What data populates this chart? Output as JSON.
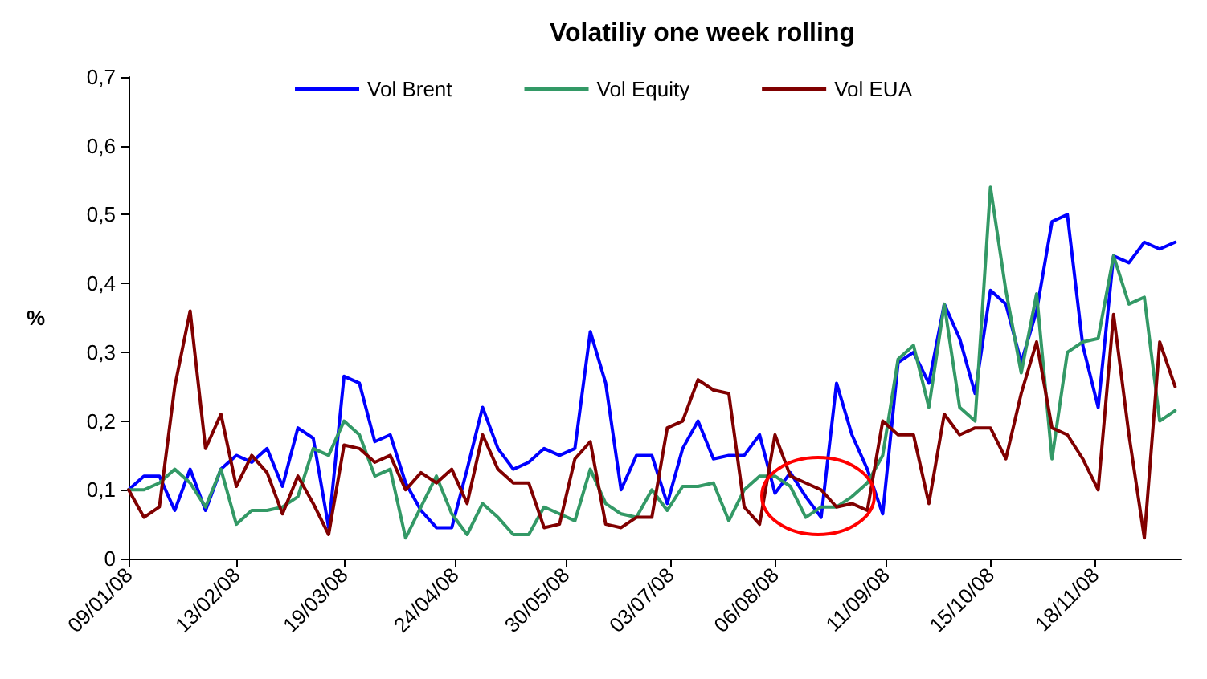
{
  "chart_data": {
    "type": "line",
    "title": "Volatiliy one week rolling",
    "ylabel": "%",
    "x": [
      "2008-01-09",
      "2008-01-14",
      "2008-01-19",
      "2008-01-24",
      "2008-01-29",
      "2008-02-03",
      "2008-02-08",
      "2008-02-13",
      "2008-02-18",
      "2008-02-23",
      "2008-02-28",
      "2008-03-04",
      "2008-03-09",
      "2008-03-14",
      "2008-03-19",
      "2008-03-24",
      "2008-03-29",
      "2008-04-03",
      "2008-04-08",
      "2008-04-13",
      "2008-04-18",
      "2008-04-23",
      "2008-04-28",
      "2008-05-03",
      "2008-05-08",
      "2008-05-13",
      "2008-05-18",
      "2008-05-23",
      "2008-05-28",
      "2008-06-02",
      "2008-06-07",
      "2008-06-12",
      "2008-06-17",
      "2008-06-22",
      "2008-06-27",
      "2008-07-02",
      "2008-07-07",
      "2008-07-12",
      "2008-07-17",
      "2008-07-22",
      "2008-07-27",
      "2008-08-01",
      "2008-08-06",
      "2008-08-11",
      "2008-08-16",
      "2008-08-21",
      "2008-08-26",
      "2008-08-31",
      "2008-09-05",
      "2008-09-10",
      "2008-09-15",
      "2008-09-20",
      "2008-09-25",
      "2008-09-30",
      "2008-10-05",
      "2008-10-10",
      "2008-10-15",
      "2008-10-20",
      "2008-10-25",
      "2008-10-30",
      "2008-11-04",
      "2008-11-09",
      "2008-11-14",
      "2008-11-19",
      "2008-11-24",
      "2008-11-29",
      "2008-12-04",
      "2008-12-09",
      "2008-12-14"
    ],
    "series": [
      {
        "name": "Vol Brent",
        "color": "#0000ff",
        "values": [
          0.1,
          0.12,
          0.12,
          0.07,
          0.13,
          0.07,
          0.13,
          0.15,
          0.14,
          0.16,
          0.105,
          0.19,
          0.175,
          0.045,
          0.265,
          0.255,
          0.17,
          0.18,
          0.11,
          0.07,
          0.045,
          0.045,
          0.13,
          0.22,
          0.16,
          0.13,
          0.14,
          0.16,
          0.15,
          0.16,
          0.33,
          0.255,
          0.1,
          0.15,
          0.15,
          0.08,
          0.16,
          0.2,
          0.145,
          0.15,
          0.15,
          0.18,
          0.095,
          0.125,
          0.09,
          0.06,
          0.255,
          0.18,
          0.13,
          0.065,
          0.285,
          0.3,
          0.255,
          0.37,
          0.32,
          0.24,
          0.39,
          0.37,
          0.285,
          0.36,
          0.49,
          0.5,
          0.31,
          0.22,
          0.44,
          0.43,
          0.46,
          0.45,
          0.46
        ]
      },
      {
        "name": "Vol Equity",
        "color": "#339966",
        "values": [
          0.1,
          0.1,
          0.11,
          0.13,
          0.11,
          0.075,
          0.13,
          0.05,
          0.07,
          0.07,
          0.075,
          0.09,
          0.16,
          0.15,
          0.2,
          0.18,
          0.12,
          0.13,
          0.03,
          0.075,
          0.12,
          0.065,
          0.035,
          0.08,
          0.06,
          0.035,
          0.035,
          0.075,
          0.065,
          0.055,
          0.13,
          0.08,
          0.065,
          0.06,
          0.1,
          0.07,
          0.105,
          0.105,
          0.11,
          0.055,
          0.1,
          0.12,
          0.12,
          0.105,
          0.06,
          0.075,
          0.075,
          0.09,
          0.11,
          0.15,
          0.29,
          0.31,
          0.22,
          0.37,
          0.22,
          0.2,
          0.54,
          0.39,
          0.27,
          0.385,
          0.145,
          0.3,
          0.315,
          0.32,
          0.44,
          0.37,
          0.38,
          0.2,
          0.215
        ]
      },
      {
        "name": "Vol EUA",
        "color": "#800000",
        "values": [
          0.1,
          0.06,
          0.075,
          0.25,
          0.36,
          0.16,
          0.21,
          0.105,
          0.15,
          0.125,
          0.065,
          0.12,
          0.08,
          0.035,
          0.165,
          0.16,
          0.14,
          0.15,
          0.1,
          0.125,
          0.11,
          0.13,
          0.08,
          0.18,
          0.13,
          0.11,
          0.11,
          0.045,
          0.05,
          0.145,
          0.17,
          0.05,
          0.045,
          0.06,
          0.06,
          0.19,
          0.2,
          0.26,
          0.245,
          0.24,
          0.075,
          0.05,
          0.18,
          0.12,
          0.11,
          0.1,
          0.075,
          0.08,
          0.07,
          0.2,
          0.18,
          0.18,
          0.08,
          0.21,
          0.18,
          0.19,
          0.19,
          0.145,
          0.24,
          0.315,
          0.19,
          0.18,
          0.145,
          0.1,
          0.355,
          0.18,
          0.03,
          0.315,
          0.25
        ]
      }
    ],
    "xlim": [
      "2008-01-09",
      "2008-12-16"
    ],
    "xticks": [
      {
        "value": "2008-01-09",
        "label": "09/01/08"
      },
      {
        "value": "2008-02-13",
        "label": "13/02/08"
      },
      {
        "value": "2008-03-19",
        "label": "19/03/08"
      },
      {
        "value": "2008-04-24",
        "label": "24/04/08"
      },
      {
        "value": "2008-05-30",
        "label": "30/05/08"
      },
      {
        "value": "2008-07-03",
        "label": "03/07/08"
      },
      {
        "value": "2008-08-06",
        "label": "06/08/08"
      },
      {
        "value": "2008-09-11",
        "label": "11/09/08"
      },
      {
        "value": "2008-10-15",
        "label": "15/10/08"
      },
      {
        "value": "2008-11-18",
        "label": "18/11/08"
      }
    ],
    "ylim": [
      0,
      0.7
    ],
    "yticks": [
      0,
      {
        "value": 0.1,
        "label": "0,1"
      },
      {
        "value": 0.2,
        "label": "0,2"
      },
      {
        "value": 0.3,
        "label": "0,3"
      },
      {
        "value": 0.4,
        "label": "0,4"
      },
      {
        "value": 0.5,
        "label": "0,5"
      },
      {
        "value": 0.6,
        "label": "0,6"
      },
      {
        "value": 0.7,
        "label": "0,7"
      }
    ],
    "grid": false,
    "legend": "top",
    "marker": "none",
    "line_style": "solid"
  }
}
